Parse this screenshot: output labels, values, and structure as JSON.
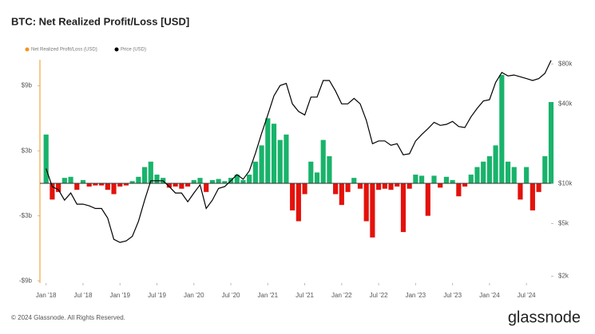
{
  "chart_data": {
    "type": "bar-line",
    "title": "BTC: Net Realized Profit/Loss [USD]",
    "x": [
      "2018-01",
      "2018-02",
      "2018-03",
      "2018-04",
      "2018-05",
      "2018-06",
      "2018-07",
      "2018-08",
      "2018-09",
      "2018-10",
      "2018-11",
      "2018-12",
      "2019-01",
      "2019-02",
      "2019-03",
      "2019-04",
      "2019-05",
      "2019-06",
      "2019-07",
      "2019-08",
      "2019-09",
      "2019-10",
      "2019-11",
      "2019-12",
      "2020-01",
      "2020-02",
      "2020-03",
      "2020-04",
      "2020-05",
      "2020-06",
      "2020-07",
      "2020-08",
      "2020-09",
      "2020-10",
      "2020-11",
      "2020-12",
      "2021-01",
      "2021-02",
      "2021-03",
      "2021-04",
      "2021-05",
      "2021-06",
      "2021-07",
      "2021-08",
      "2021-09",
      "2021-10",
      "2021-11",
      "2021-12",
      "2022-01",
      "2022-02",
      "2022-03",
      "2022-04",
      "2022-05",
      "2022-06",
      "2022-07",
      "2022-08",
      "2022-09",
      "2022-10",
      "2022-11",
      "2022-12",
      "2023-01",
      "2023-02",
      "2023-03",
      "2023-04",
      "2023-05",
      "2023-06",
      "2023-07",
      "2023-08",
      "2023-09",
      "2023-10",
      "2023-11",
      "2023-12",
      "2024-01",
      "2024-02",
      "2024-03",
      "2024-04",
      "2024-05",
      "2024-06",
      "2024-07",
      "2024-08",
      "2024-09",
      "2024-10",
      "2024-11"
    ],
    "series": [
      {
        "name": "Net Realized Profit/Loss (USD)",
        "color": "#f7931a",
        "positive_color": "#19b36b",
        "negative_color": "#e3120b",
        "values": [
          4.5,
          -1.5,
          -0.8,
          0.5,
          0.6,
          -0.6,
          0.3,
          -0.3,
          -0.2,
          -0.2,
          -0.6,
          -1.0,
          -0.3,
          -0.2,
          0.2,
          0.6,
          1.5,
          2.0,
          0.8,
          0.5,
          -0.4,
          -0.3,
          -0.5,
          -0.3,
          0.3,
          0.5,
          -0.8,
          0.3,
          0.4,
          0.2,
          0.5,
          0.8,
          0.3,
          0.8,
          2.0,
          3.5,
          6.0,
          5.5,
          4.0,
          4.5,
          -2.5,
          -3.5,
          -1.0,
          2.0,
          1.0,
          4.0,
          2.5,
          -1.0,
          -2.0,
          -0.8,
          0.5,
          -0.5,
          -3.5,
          -5.0,
          -0.6,
          -0.5,
          -0.6,
          -0.3,
          -4.5,
          -0.5,
          0.8,
          0.7,
          -3.0,
          0.7,
          -0.4,
          0.6,
          0.3,
          -1.2,
          -0.3,
          0.8,
          1.5,
          2.0,
          2.5,
          3.5,
          10.0,
          2.0,
          1.5,
          -1.5,
          1.5,
          -2.5,
          -0.8,
          2.5,
          7.5
        ]
      },
      {
        "name": "Price (USD)",
        "color": "#000000",
        "axis": "y2",
        "values": [
          13000,
          9500,
          9000,
          7500,
          8500,
          7000,
          7000,
          6800,
          6500,
          6500,
          5500,
          3800,
          3600,
          3700,
          4000,
          5200,
          7500,
          10500,
          10500,
          10500,
          9500,
          8500,
          8500,
          7300,
          8500,
          9800,
          6500,
          7500,
          9200,
          9500,
          10500,
          11700,
          10800,
          12500,
          17000,
          24000,
          33000,
          46000,
          55000,
          57000,
          40000,
          35000,
          33000,
          45000,
          45000,
          60000,
          60000,
          50000,
          40000,
          40000,
          44000,
          40000,
          30000,
          20000,
          21000,
          21000,
          19500,
          20000,
          16500,
          16800,
          21000,
          23500,
          26000,
          29000,
          27500,
          28000,
          29500,
          27000,
          26500,
          32000,
          37000,
          42000,
          43000,
          58000,
          69000,
          65000,
          66000,
          64000,
          62000,
          60000,
          62000,
          68000,
          85000
        ]
      }
    ],
    "xlim": [
      "2017-12",
      "2024-11"
    ],
    "xticks": [
      {
        "value": "2018-01",
        "label": "Jan '18"
      },
      {
        "value": "2018-07",
        "label": "Jul '18"
      },
      {
        "value": "2019-01",
        "label": "Jan '19"
      },
      {
        "value": "2019-07",
        "label": "Jul '19"
      },
      {
        "value": "2020-01",
        "label": "Jan '20"
      },
      {
        "value": "2020-07",
        "label": "Jul '20"
      },
      {
        "value": "2021-01",
        "label": "Jan '21"
      },
      {
        "value": "2021-07",
        "label": "Jul '21"
      },
      {
        "value": "2022-01",
        "label": "Jan '22"
      },
      {
        "value": "2022-07",
        "label": "Jul '22"
      },
      {
        "value": "2023-01",
        "label": "Jan '23"
      },
      {
        "value": "2023-07",
        "label": "Jul '23"
      },
      {
        "value": "2024-01",
        "label": "Jan '24"
      },
      {
        "value": "2024-07",
        "label": "Jul '24"
      }
    ],
    "ylim": [
      -9.2,
      11.4
    ],
    "yticks": [
      {
        "value": 9,
        "label": "$9b"
      },
      {
        "value": 3,
        "label": "$3b"
      },
      {
        "value": -3,
        "label": "-$3b"
      },
      {
        "value": -9,
        "label": "-$9b"
      }
    ],
    "y2lim": [
      1780,
      86000
    ],
    "y2scale": "log",
    "y2ticks": [
      {
        "value": 80000,
        "label": "$80k"
      },
      {
        "value": 40000,
        "label": "$40k"
      },
      {
        "value": 10000,
        "label": "$10k"
      },
      {
        "value": 5000,
        "label": "$5k"
      },
      {
        "value": 2000,
        "label": "$2k"
      }
    ],
    "grid": false
  },
  "footer": {
    "copyright": "© 2024 Glassnode. All Rights Reserved.",
    "brand": "glassnode"
  }
}
